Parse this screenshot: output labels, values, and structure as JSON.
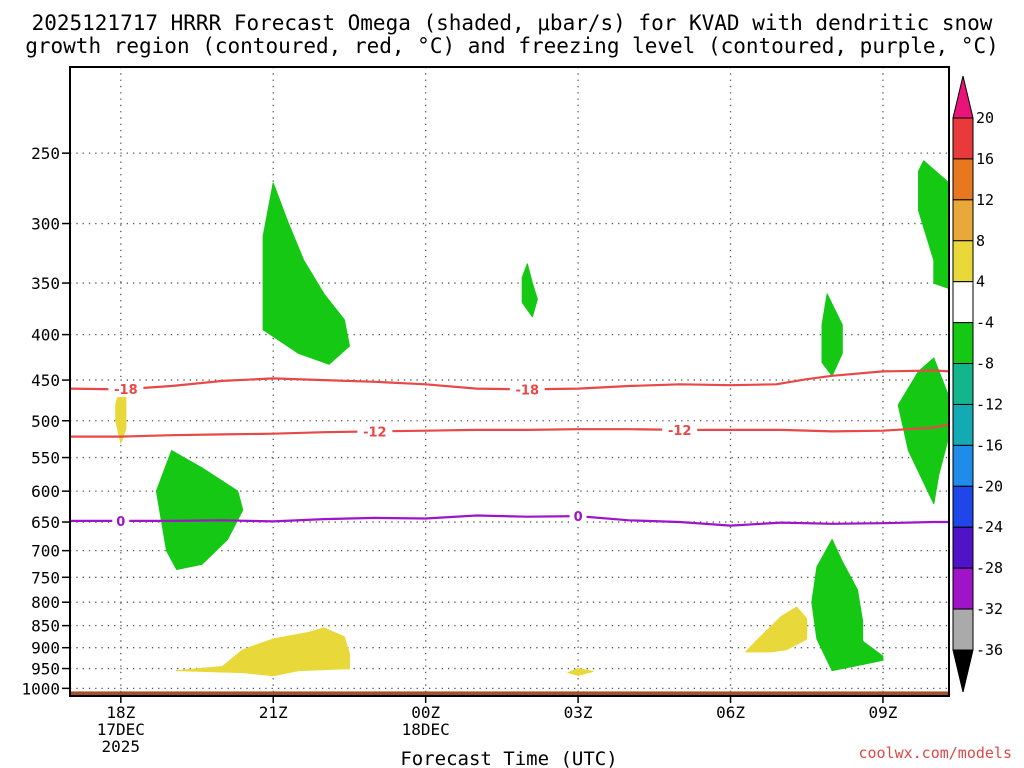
{
  "chart_data": {
    "type": "time-height contour",
    "title_line1": "2025121717 HRRR Forecast Omega (shaded, μbar/s) for KVAD with dendritic snow",
    "title_line2": "growth region (contoured, red, °C) and freezing level (contoured, purple, °C)",
    "xlabel": "Forecast Time (UTC)",
    "credit": "coolwx.com/models",
    "x_range_hours": [
      17,
      34.3
    ],
    "x_ticks": [
      {
        "hour": 18,
        "lines": [
          "18Z",
          "17DEC",
          "2025"
        ]
      },
      {
        "hour": 21,
        "lines": [
          "21Z"
        ]
      },
      {
        "hour": 24,
        "lines": [
          "00Z",
          "18DEC"
        ]
      },
      {
        "hour": 27,
        "lines": [
          "03Z"
        ]
      },
      {
        "hour": 30,
        "lines": [
          "06Z"
        ]
      },
      {
        "hour": 33,
        "lines": [
          "09Z"
        ]
      }
    ],
    "y_range_hPa": [
      1020,
      200
    ],
    "y_ticks": [
      250,
      300,
      350,
      400,
      450,
      500,
      550,
      600,
      650,
      700,
      750,
      800,
      850,
      900,
      950,
      1000
    ],
    "surface_hPa": 1008,
    "colorbar": {
      "labels": [
        "20",
        "16",
        "12",
        "8",
        "4",
        "-4",
        "-8",
        "-12",
        "-16",
        "-20",
        "-24",
        "-28",
        "-32",
        "-36"
      ],
      "colors": [
        "#e83a3a",
        "#e87820",
        "#e8a83a",
        "#e8d83a",
        "#ffffff",
        "#14c814",
        "#14b48c",
        "#14aab4",
        "#1e8ce8",
        "#1e46e8",
        "#5014c8",
        "#a014c8",
        "#aaaaaa"
      ],
      "top_arrow_color": "#e8147a",
      "bottom_arrow_color": "#000000"
    },
    "contours": [
      {
        "name": "-18",
        "color": "#e84848",
        "points": [
          [
            17,
            460
          ],
          [
            18,
            461
          ],
          [
            19,
            457
          ],
          [
            20,
            451
          ],
          [
            21,
            448
          ],
          [
            22,
            450
          ],
          [
            23,
            452
          ],
          [
            24,
            455
          ],
          [
            25,
            460
          ],
          [
            26,
            461
          ],
          [
            27,
            460
          ],
          [
            28,
            457
          ],
          [
            29,
            455
          ],
          [
            30,
            456
          ],
          [
            30.9,
            455
          ],
          [
            31.5,
            449
          ],
          [
            32,
            445
          ],
          [
            33,
            440
          ],
          [
            34,
            439
          ],
          [
            34.3,
            440
          ]
        ],
        "label_hours": [
          18.1,
          26
        ]
      },
      {
        "name": "-12",
        "color": "#e84848",
        "points": [
          [
            17,
            521
          ],
          [
            18,
            521
          ],
          [
            19,
            519
          ],
          [
            20,
            518
          ],
          [
            21,
            517
          ],
          [
            22,
            515
          ],
          [
            23,
            514
          ],
          [
            24,
            513
          ],
          [
            25,
            512
          ],
          [
            26,
            512
          ],
          [
            27,
            511
          ],
          [
            28,
            511
          ],
          [
            29,
            512
          ],
          [
            30,
            512
          ],
          [
            31,
            512
          ],
          [
            32,
            514
          ],
          [
            33,
            513
          ],
          [
            34,
            509
          ],
          [
            34.3,
            505
          ]
        ],
        "label_hours": [
          23,
          29
        ]
      },
      {
        "name": "0",
        "color": "#a014c8",
        "points": [
          [
            17,
            648
          ],
          [
            18,
            648
          ],
          [
            19,
            648
          ],
          [
            20,
            647
          ],
          [
            21,
            649
          ],
          [
            22,
            645
          ],
          [
            23,
            643
          ],
          [
            24,
            644
          ],
          [
            25,
            639
          ],
          [
            26,
            641
          ],
          [
            27,
            640
          ],
          [
            28,
            647
          ],
          [
            29,
            650
          ],
          [
            30,
            656
          ],
          [
            31,
            651
          ],
          [
            32,
            653
          ],
          [
            33,
            652
          ],
          [
            34,
            650
          ],
          [
            34.3,
            650
          ]
        ],
        "label_hours": [
          18,
          27
        ]
      }
    ],
    "omega_regions": [
      {
        "name": "upward-21Z-upper",
        "value_range": "-8 to -4",
        "color": "#14c814",
        "points": [
          [
            21,
            270
          ],
          [
            21.3,
            300
          ],
          [
            21.6,
            330
          ],
          [
            22,
            360
          ],
          [
            22.4,
            385
          ],
          [
            22.5,
            412
          ],
          [
            22.1,
            432
          ],
          [
            21.5,
            420
          ],
          [
            20.8,
            395
          ],
          [
            20.8,
            310
          ]
        ]
      },
      {
        "name": "upward-19Z-mid",
        "value_range": "-8 to -4",
        "color": "#14c814",
        "points": [
          [
            19,
            540
          ],
          [
            19.6,
            565
          ],
          [
            20.3,
            600
          ],
          [
            20.4,
            630
          ],
          [
            20.1,
            680
          ],
          [
            19.6,
            725
          ],
          [
            19.1,
            735
          ],
          [
            18.9,
            700
          ],
          [
            18.7,
            600
          ]
        ]
      },
      {
        "name": "upward-02Z-small",
        "value_range": "-8 to -4",
        "color": "#14c814",
        "points": [
          [
            26,
            333
          ],
          [
            26.1,
            350
          ],
          [
            26.2,
            365
          ],
          [
            26.1,
            382
          ],
          [
            25.9,
            368
          ],
          [
            25.9,
            345
          ]
        ]
      },
      {
        "name": "upward-08Z-upper",
        "value_range": "-8 to -4",
        "color": "#14c814",
        "points": [
          [
            31.9,
            360
          ],
          [
            32.2,
            390
          ],
          [
            32.2,
            420
          ],
          [
            32.0,
            445
          ],
          [
            31.8,
            430
          ],
          [
            31.8,
            390
          ]
        ]
      },
      {
        "name": "upward-10Z-upper",
        "value_range": "-8 to -4",
        "color": "#14c814",
        "points": [
          [
            34.3,
            270
          ],
          [
            33.8,
            255
          ],
          [
            33.7,
            262
          ],
          [
            33.7,
            290
          ],
          [
            34.0,
            330
          ],
          [
            34.0,
            350
          ],
          [
            34.3,
            355
          ]
        ]
      },
      {
        "name": "upward-10Z-mid",
        "value_range": "-8 to -4",
        "color": "#14c814",
        "points": [
          [
            34,
            425
          ],
          [
            34.3,
            470
          ],
          [
            34.3,
            520
          ],
          [
            34.1,
            575
          ],
          [
            34,
            620
          ],
          [
            33.5,
            540
          ],
          [
            33.3,
            480
          ],
          [
            33.7,
            440
          ]
        ]
      },
      {
        "name": "upward-08Z-low",
        "value_range": "-8 to -4",
        "color": "#14c814",
        "points": [
          [
            32,
            680
          ],
          [
            32.2,
            720
          ],
          [
            32.5,
            775
          ],
          [
            32.6,
            840
          ],
          [
            32.6,
            885
          ],
          [
            33,
            920
          ],
          [
            33,
            930
          ],
          [
            32.6,
            940
          ],
          [
            32.0,
            955
          ],
          [
            31.7,
            880
          ],
          [
            31.6,
            800
          ],
          [
            31.7,
            730
          ]
        ]
      },
      {
        "name": "downward-18Z-mid",
        "value_range": "4 to 8",
        "color": "#e8d83a",
        "points": [
          [
            18.0,
            455
          ],
          [
            18.1,
            470
          ],
          [
            18.1,
            510
          ],
          [
            18.0,
            530
          ],
          [
            17.9,
            500
          ],
          [
            17.9,
            480
          ]
        ]
      },
      {
        "name": "downward-21Z-low",
        "value_range": "4 to 8",
        "color": "#e8d83a",
        "points": [
          [
            19.1,
            955
          ],
          [
            20.0,
            945
          ],
          [
            20.4,
            905
          ],
          [
            21,
            880
          ],
          [
            21.7,
            865
          ],
          [
            22.0,
            855
          ],
          [
            22.4,
            875
          ],
          [
            22.5,
            915
          ],
          [
            22.5,
            950
          ],
          [
            21.5,
            955
          ],
          [
            21,
            968
          ],
          [
            20.4,
            960
          ]
        ]
      },
      {
        "name": "downward-03Z-low",
        "value_range": "4 to 8",
        "color": "#e8d83a",
        "points": [
          [
            26.8,
            960
          ],
          [
            27,
            950
          ],
          [
            27.3,
            957
          ],
          [
            27,
            967
          ]
        ]
      },
      {
        "name": "downward-07Z-low",
        "value_range": "4 to 8",
        "color": "#e8d83a",
        "points": [
          [
            30.3,
            910
          ],
          [
            30.5,
            885
          ],
          [
            31.0,
            830
          ],
          [
            31.3,
            810
          ],
          [
            31.5,
            835
          ],
          [
            31.5,
            880
          ],
          [
            31.1,
            905
          ],
          [
            30.8,
            910
          ]
        ]
      }
    ]
  }
}
